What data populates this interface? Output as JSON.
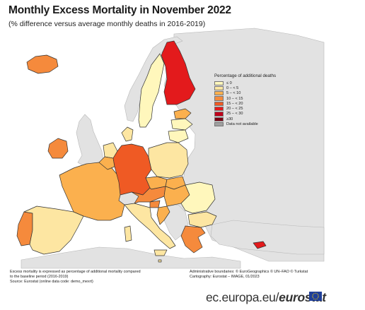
{
  "header": {
    "title": "Monthly Excess Mortality in November 2022",
    "subtitle": "(% difference versus average monthly deaths in 2016-2019)"
  },
  "legend": {
    "title": "Percentage of additional deaths",
    "items": [
      {
        "label": "≤ 0",
        "color": "#fff7bc"
      },
      {
        "label": "0 – < 5",
        "color": "#fde6a2"
      },
      {
        "label": "5 – < 10",
        "color": "#fbb04e"
      },
      {
        "label": "10 – < 15",
        "color": "#f58a3c"
      },
      {
        "label": "15 – < 20",
        "color": "#ef5a24"
      },
      {
        "label": "20 – < 25",
        "color": "#e31a1c"
      },
      {
        "label": "25 – < 30",
        "color": "#c0001a"
      },
      {
        "label": "≥30",
        "color": "#7a0012"
      },
      {
        "label": "Data not available",
        "color": "#a0a0a0"
      }
    ]
  },
  "map_colors": {
    "sea": "#ffffff",
    "non_eu_land": "#e2e2e2",
    "border": "#333333"
  },
  "footer": {
    "note_line1": "Excess mortality is expressed as percentage of additional mortality compared",
    "note_line2": "to the baseline period (2016-2019)",
    "source": "Source: Eurostat (online data code: demo_mexrt)",
    "boundaries": "Administrative boundaries: © EuroGeographics © UN–FAO © Turkstat",
    "cartography": "Cartography: Eurostat – IMAGE, 01/2023",
    "brand_prefix": "ec.europa.eu/",
    "brand_name": "eurostat"
  }
}
